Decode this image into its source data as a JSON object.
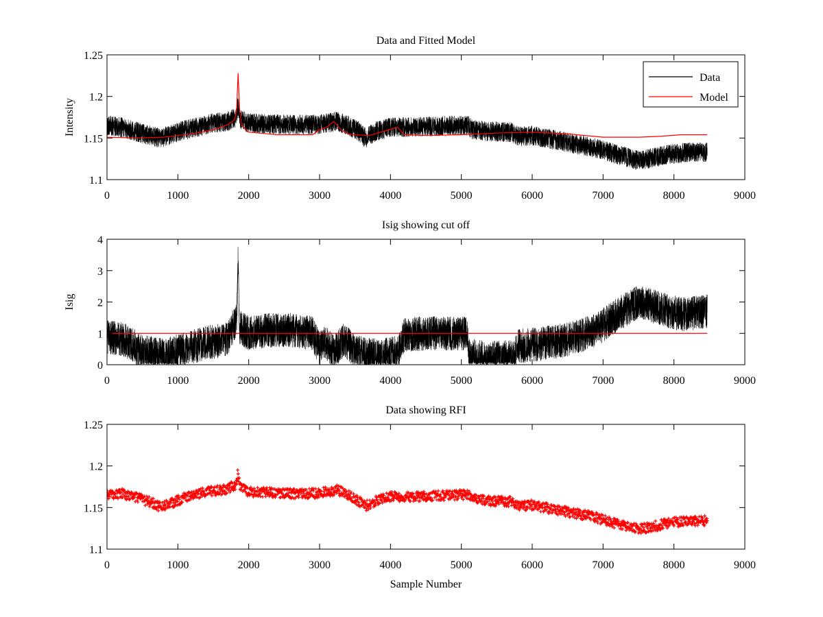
{
  "chart_data": [
    {
      "type": "line",
      "title": "Data and Fitted Model",
      "xlabel": "",
      "ylabel": "Intensity",
      "xlim": [
        0,
        9000
      ],
      "ylim": [
        1.1,
        1.25
      ],
      "xticks": [
        "0",
        "1000",
        "2000",
        "3000",
        "4000",
        "5000",
        "6000",
        "7000",
        "8000",
        "9000"
      ],
      "yticks": [
        "1.1",
        "1.15",
        "1.2",
        "1.25"
      ],
      "legend": {
        "position": "top-right",
        "entries": [
          "Data",
          "Model"
        ]
      },
      "series": [
        {
          "name": "Data",
          "color": "#000000",
          "noise": 0.012,
          "x": [
            0,
            200,
            400,
            600,
            750,
            900,
            1100,
            1300,
            1500,
            1700,
            1820,
            1850,
            1880,
            2000,
            2300,
            2600,
            2900,
            3100,
            3250,
            3400,
            3550,
            3650,
            3800,
            4000,
            4300,
            4600,
            4900,
            5100,
            5150,
            5400,
            5700,
            5800,
            6000,
            6300,
            6600,
            6900,
            7200,
            7500,
            7700,
            7900,
            8200,
            8470
          ],
          "values": [
            1.165,
            1.163,
            1.158,
            1.153,
            1.15,
            1.154,
            1.16,
            1.164,
            1.168,
            1.17,
            1.175,
            1.19,
            1.172,
            1.168,
            1.167,
            1.166,
            1.166,
            1.168,
            1.17,
            1.165,
            1.158,
            1.15,
            1.158,
            1.163,
            1.163,
            1.164,
            1.165,
            1.165,
            1.16,
            1.158,
            1.157,
            1.152,
            1.153,
            1.148,
            1.143,
            1.138,
            1.13,
            1.123,
            1.126,
            1.13,
            1.133,
            1.133
          ]
        },
        {
          "name": "Model",
          "color": "#ff0000",
          "x": [
            0,
            400,
            800,
            1200,
            1500,
            1700,
            1800,
            1830,
            1850,
            1870,
            1900,
            2000,
            2400,
            2900,
            3000,
            3100,
            3200,
            3300,
            3400,
            3500,
            3700,
            3900,
            4100,
            4200,
            4500,
            5000,
            5500,
            6000,
            6500,
            7000,
            7500,
            7800,
            8100,
            8470
          ],
          "values": [
            1.151,
            1.15,
            1.151,
            1.155,
            1.16,
            1.166,
            1.172,
            1.185,
            1.228,
            1.185,
            1.165,
            1.157,
            1.154,
            1.154,
            1.16,
            1.163,
            1.17,
            1.16,
            1.155,
            1.154,
            1.153,
            1.158,
            1.163,
            1.154,
            1.153,
            1.154,
            1.156,
            1.157,
            1.155,
            1.151,
            1.151,
            1.152,
            1.154,
            1.154
          ]
        }
      ]
    },
    {
      "type": "line",
      "title": "Isig showing cut off",
      "xlabel": "",
      "ylabel": "Isig",
      "xlim": [
        0,
        9000
      ],
      "ylim": [
        0,
        4
      ],
      "xticks": [
        "0",
        "1000",
        "2000",
        "3000",
        "4000",
        "5000",
        "6000",
        "7000",
        "8000",
        "9000"
      ],
      "yticks": [
        "0",
        "1",
        "2",
        "3",
        "4"
      ],
      "series": [
        {
          "name": "Isig",
          "color": "#000000",
          "noise": 0.55,
          "x": [
            0,
            250,
            500,
            800,
            1100,
            1400,
            1700,
            1830,
            1850,
            1870,
            2000,
            2300,
            2600,
            2900,
            3000,
            3050,
            3200,
            3350,
            3500,
            3700,
            3900,
            4100,
            4200,
            4500,
            4800,
            5090,
            5100,
            5400,
            5750,
            5800,
            6100,
            6500,
            6900,
            7200,
            7500,
            7800,
            8100,
            8470
          ],
          "values": [
            0.9,
            0.8,
            0.4,
            0.3,
            0.5,
            0.7,
            0.8,
            1.5,
            3.3,
            1.2,
            1.0,
            1.1,
            1.1,
            1.0,
            0.5,
            0.8,
            0.4,
            0.8,
            0.4,
            0.3,
            0.3,
            0.4,
            0.95,
            1.0,
            1.0,
            1.0,
            0.3,
            0.2,
            0.25,
            0.6,
            0.65,
            0.8,
            1.1,
            1.6,
            2.0,
            1.8,
            1.6,
            1.7
          ]
        },
        {
          "name": "Cut off",
          "color": "#ff0000",
          "x": [
            0,
            8470
          ],
          "values": [
            1,
            1
          ]
        }
      ]
    },
    {
      "type": "scatter",
      "title": "Data showing RFI",
      "xlabel": "Sample Number",
      "ylabel": "",
      "xlim": [
        0,
        9000
      ],
      "ylim": [
        1.1,
        1.25
      ],
      "xticks": [
        "0",
        "1000",
        "2000",
        "3000",
        "4000",
        "5000",
        "6000",
        "7000",
        "8000",
        "9000"
      ],
      "yticks": [
        "1.1",
        "1.15",
        "1.2",
        "1.25"
      ],
      "series": [
        {
          "name": "Data",
          "color": "#ff0000",
          "noise": 0.006,
          "x": [
            0,
            200,
            400,
            600,
            750,
            900,
            1100,
            1300,
            1500,
            1700,
            1820,
            1850,
            1880,
            2000,
            2300,
            2600,
            2900,
            3100,
            3250,
            3400,
            3550,
            3650,
            3800,
            4000,
            4300,
            4600,
            4900,
            5100,
            5150,
            5400,
            5700,
            5800,
            6000,
            6300,
            6600,
            6900,
            7200,
            7500,
            7700,
            7900,
            8200,
            8470
          ],
          "values": [
            1.165,
            1.167,
            1.162,
            1.157,
            1.151,
            1.155,
            1.162,
            1.167,
            1.17,
            1.172,
            1.178,
            1.192,
            1.174,
            1.169,
            1.168,
            1.167,
            1.167,
            1.169,
            1.171,
            1.166,
            1.158,
            1.152,
            1.158,
            1.163,
            1.163,
            1.164,
            1.165,
            1.166,
            1.16,
            1.158,
            1.157,
            1.152,
            1.153,
            1.148,
            1.143,
            1.138,
            1.13,
            1.124,
            1.127,
            1.131,
            1.134,
            1.134
          ]
        }
      ]
    }
  ]
}
